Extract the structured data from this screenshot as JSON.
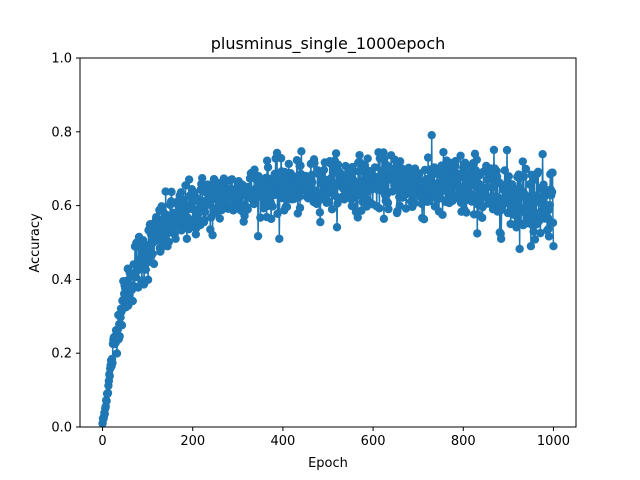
{
  "chart_data": {
    "type": "line",
    "marker": "circle",
    "title": "plusminus_single_1000epoch",
    "xlabel": "Epoch",
    "ylabel": "Accuracy",
    "xlim": [
      -50,
      1050
    ],
    "ylim": [
      0.0,
      1.0
    ],
    "xticks": [
      0,
      200,
      400,
      600,
      800,
      1000
    ],
    "xtick_labels": [
      "0",
      "200",
      "400",
      "600",
      "800",
      "1000"
    ],
    "yticks": [
      0.0,
      0.2,
      0.4,
      0.6,
      0.8,
      1.0
    ],
    "ytick_labels": [
      "0.0",
      "0.2",
      "0.4",
      "0.6",
      "0.8",
      "1.0"
    ],
    "grid": false,
    "legend": "none",
    "series_color": "#1f77b4",
    "series": [
      {
        "x": [
          0,
          25,
          50,
          75,
          100,
          125,
          150,
          175,
          200,
          225,
          250,
          275,
          300,
          350,
          400,
          450,
          500,
          550,
          600,
          650,
          700,
          750,
          800,
          850,
          900,
          950,
          1000
        ],
        "y": [
          0.0,
          0.22,
          0.36,
          0.44,
          0.48,
          0.52,
          0.55,
          0.57,
          0.59,
          0.61,
          0.62,
          0.63,
          0.63,
          0.64,
          0.65,
          0.65,
          0.66,
          0.66,
          0.66,
          0.66,
          0.65,
          0.65,
          0.65,
          0.64,
          0.63,
          0.62,
          0.62
        ],
        "spread_y": [
          0.0,
          0.02,
          0.03,
          0.04,
          0.04,
          0.04,
          0.04,
          0.04,
          0.04,
          0.035,
          0.035,
          0.035,
          0.035,
          0.035,
          0.035,
          0.035,
          0.035,
          0.035,
          0.035,
          0.04,
          0.04,
          0.045,
          0.045,
          0.045,
          0.05,
          0.05,
          0.05
        ]
      }
    ],
    "highlighted_points": [
      {
        "x": 244,
        "y": 0.68
      },
      {
        "x": 244,
        "y": 0.52
      },
      {
        "x": 392,
        "y": 0.51
      },
      {
        "x": 660,
        "y": 0.72
      },
      {
        "x": 722,
        "y": 0.73
      },
      {
        "x": 950,
        "y": 0.49
      },
      {
        "x": 1000,
        "y": 0.7
      },
      {
        "x": 1000,
        "y": 0.49
      }
    ]
  }
}
